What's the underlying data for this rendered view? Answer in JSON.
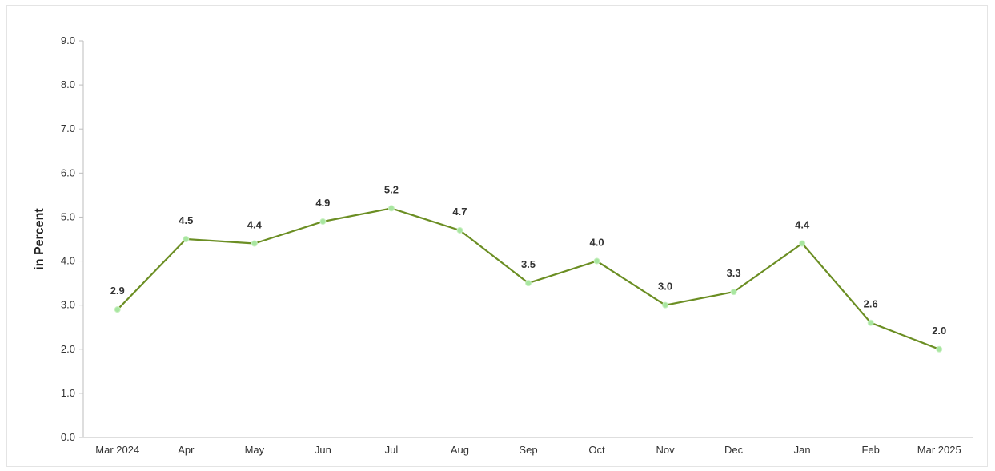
{
  "chart_data": {
    "type": "line",
    "title": "",
    "xlabel": "",
    "ylabel": "in Percent",
    "categories": [
      "Mar 2024",
      "Apr",
      "May",
      "Jun",
      "Jul",
      "Aug",
      "Sep",
      "Oct",
      "Nov",
      "Dec",
      "Jan",
      "Feb",
      "Mar 2025"
    ],
    "series": [
      {
        "values": [
          2.9,
          4.5,
          4.4,
          4.9,
          5.2,
          4.7,
          3.5,
          4.0,
          3.0,
          3.3,
          4.4,
          2.6,
          2.0
        ],
        "labels": [
          "2.9",
          "4.5",
          "4.4",
          "4.9",
          "5.2",
          "4.7",
          "3.5",
          "4.0",
          "3.0",
          "3.3",
          "4.4",
          "2.6",
          "2.0"
        ]
      }
    ],
    "ylim": [
      0,
      9
    ],
    "yticks": [
      "0.0",
      "1.0",
      "2.0",
      "3.0",
      "4.0",
      "5.0",
      "6.0",
      "7.0",
      "8.0",
      "9.0"
    ],
    "grid": false,
    "legend": "none",
    "colors": {
      "line": "#6b8e23",
      "marker": "#a8e6a0",
      "axis": "#bdbdbd"
    }
  }
}
